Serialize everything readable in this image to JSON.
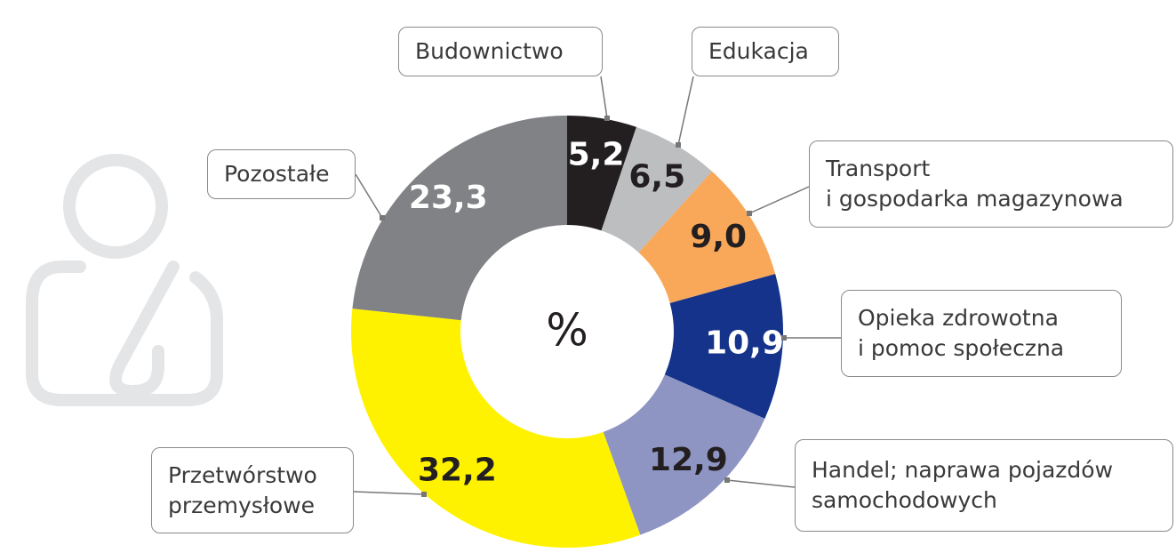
{
  "chart_data": {
    "type": "donut",
    "center_label": "%",
    "categories": [
      "Budownictwo",
      "Edukacja",
      "Transport\ni gospodarka magazynowa",
      "Opieka zdrowotna\ni pomoc społeczna",
      "Handel; naprawa pojazdów\nsamochodowych",
      "Przetwórstwo\nprzemysłowe",
      "Pozostałe"
    ],
    "values": [
      5.2,
      6.5,
      9.0,
      10.9,
      12.9,
      32.2,
      23.3
    ],
    "value_labels": [
      "5,2",
      "6,5",
      "9,0",
      "10,9",
      "12,9",
      "32,2",
      "23,3"
    ],
    "colors": [
      "#231f20",
      "#bcbec0",
      "#f9a85a",
      "#15338a",
      "#8e95c3",
      "#fff200",
      "#808285"
    ]
  }
}
